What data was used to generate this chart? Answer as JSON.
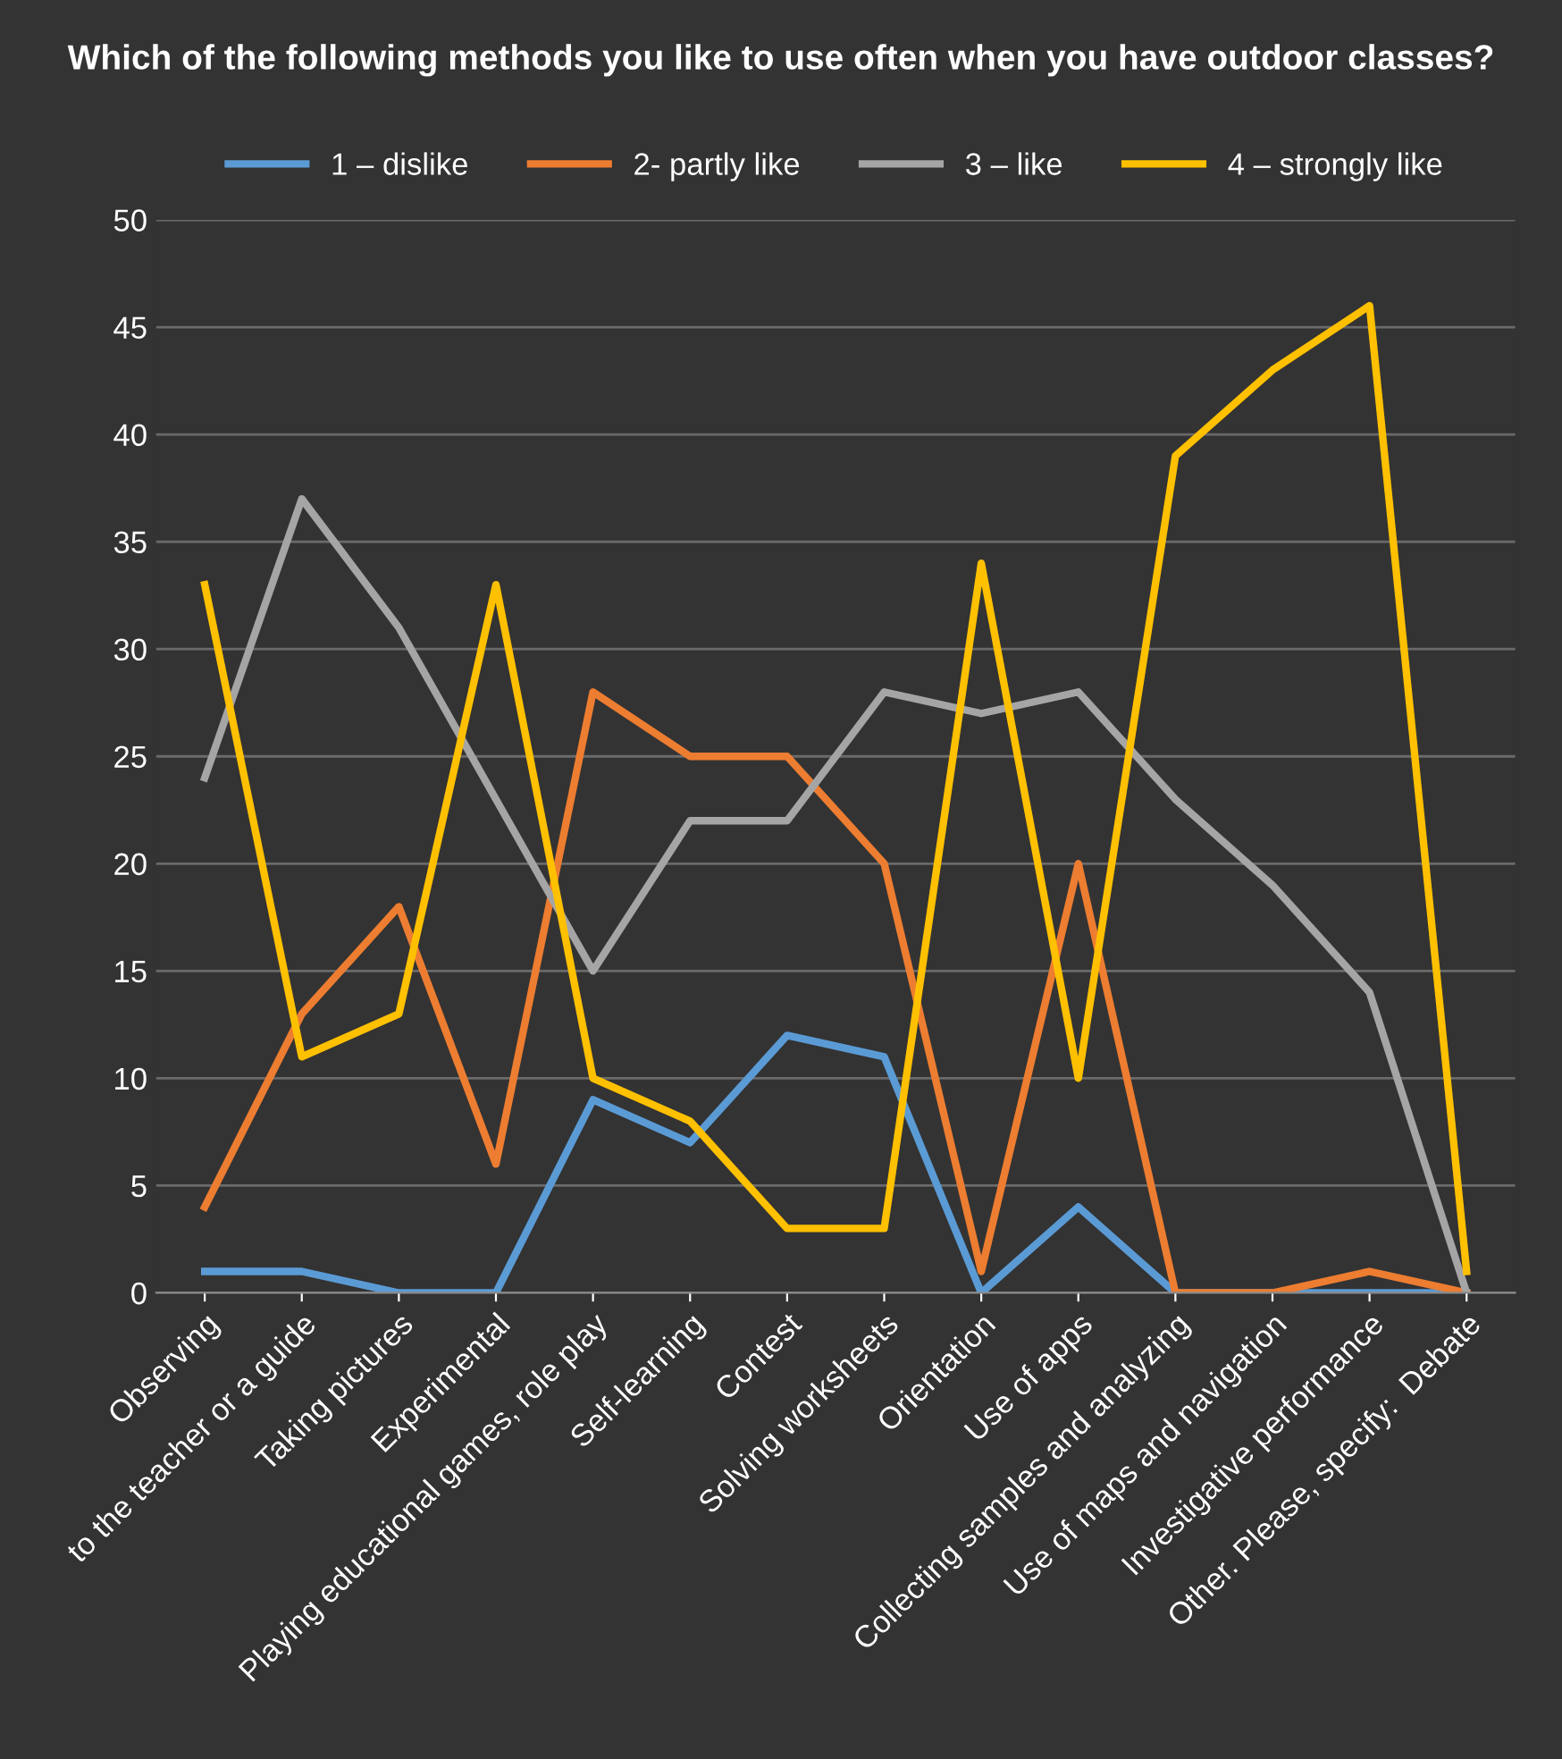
{
  "chart_data": {
    "type": "line",
    "title": "Which of the following methods you like to use often when you have outdoor classes?",
    "categories": [
      "Observing",
      "to the teacher or a guide",
      "Taking pictures",
      "Experimental",
      "Playing educational games, role play",
      "Self-learning",
      "Contest",
      "Solving worksheets",
      "Orientation",
      "Use of apps",
      "Collecting samples and analyzing",
      "Use of maps and navigation",
      "Investigative performance",
      "Other. Please, specify:  Debate"
    ],
    "series": [
      {
        "name": "1 – dislike",
        "color": "#5b9bd5",
        "values": [
          1,
          1,
          0,
          0,
          9,
          7,
          12,
          11,
          0,
          4,
          0,
          0,
          0,
          0
        ]
      },
      {
        "name": "2- partly like",
        "color": "#ed7d31",
        "values": [
          4,
          13,
          18,
          6,
          28,
          25,
          25,
          20,
          1,
          20,
          0,
          0,
          1,
          0
        ]
      },
      {
        "name": "3 – like",
        "color": "#a5a5a5",
        "values": [
          24,
          37,
          31,
          23,
          15,
          22,
          22,
          28,
          27,
          28,
          23,
          19,
          14,
          0
        ]
      },
      {
        "name": "4 – strongly like",
        "color": "#ffc000",
        "values": [
          33,
          11,
          13,
          33,
          10,
          8,
          3,
          3,
          34,
          10,
          39,
          43,
          46,
          1
        ]
      }
    ],
    "ylim": [
      0,
      50
    ],
    "yticks": [
      0,
      5,
      10,
      15,
      20,
      25,
      30,
      35,
      40,
      45,
      50
    ],
    "grid": "y",
    "legend": "top",
    "marker": "none",
    "line_style": "solid"
  }
}
